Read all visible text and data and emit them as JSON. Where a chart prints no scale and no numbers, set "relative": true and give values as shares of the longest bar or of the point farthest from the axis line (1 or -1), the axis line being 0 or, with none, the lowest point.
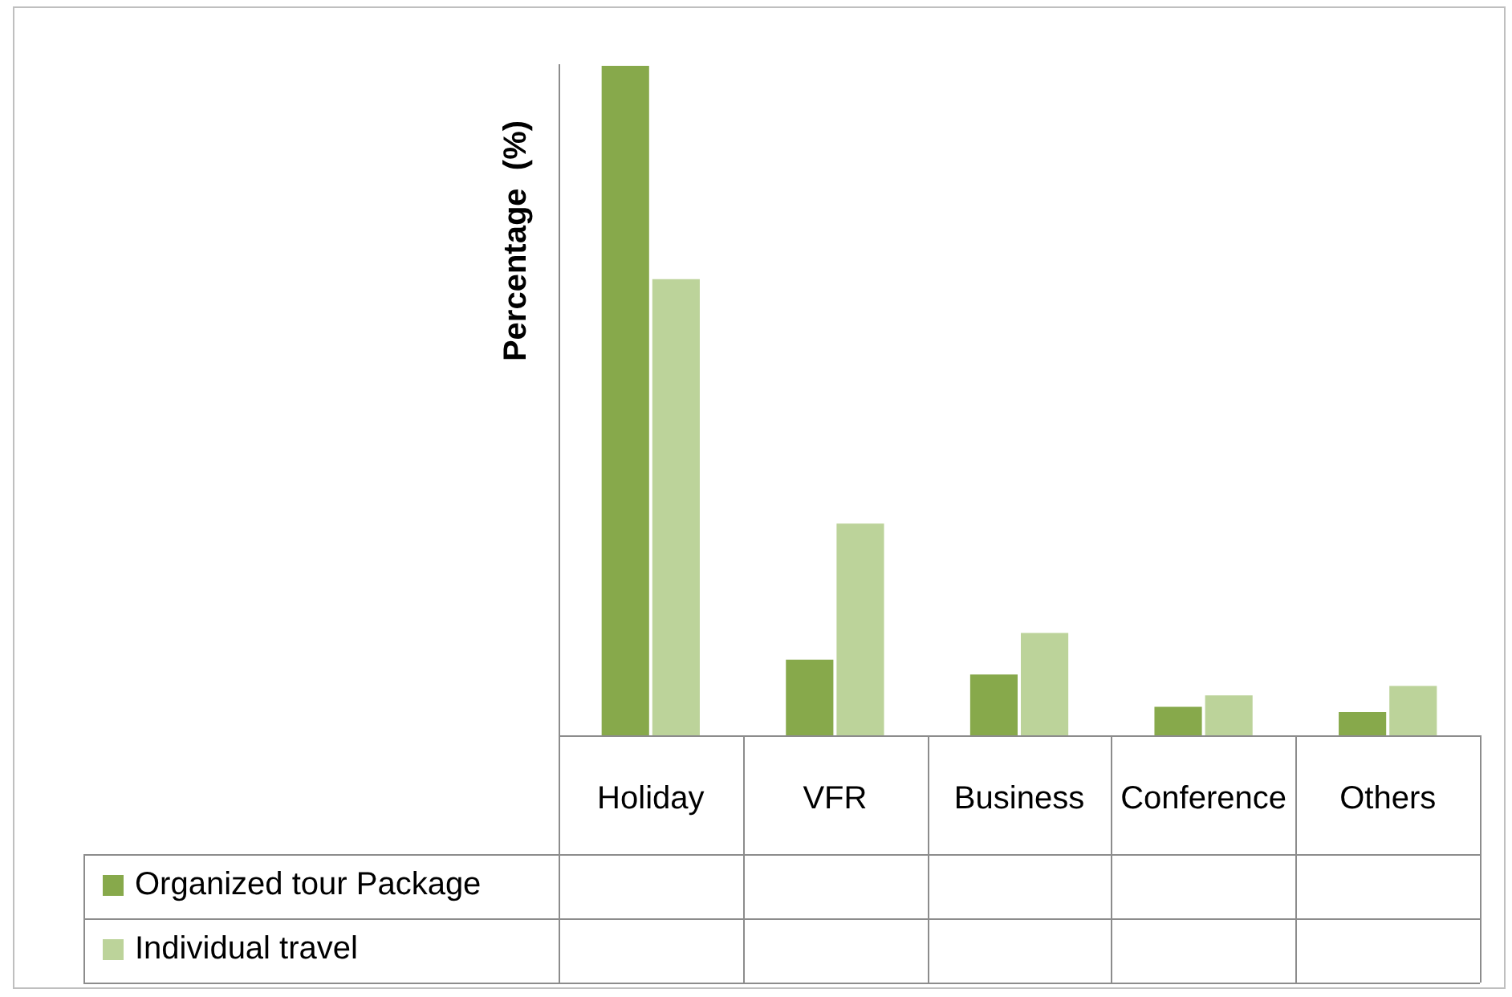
{
  "chart_data": {
    "type": "bar",
    "ylabel": "Percentage  (%)",
    "relative": true,
    "legend": "bottom",
    "grid": false,
    "categories": [
      "Holiday",
      "VFR",
      "Business",
      "Conference",
      "Others"
    ],
    "series": [
      {
        "name": "Organized tour Package",
        "color": "#87a94b",
        "values": [
          1,
          0.115,
          0.093,
          0.045,
          0.037
        ]
      },
      {
        "name": "Individual travel",
        "color": "#bcd39a",
        "values": [
          0.682,
          0.318,
          0.155,
          0.062,
          0.076
        ]
      }
    ]
  }
}
